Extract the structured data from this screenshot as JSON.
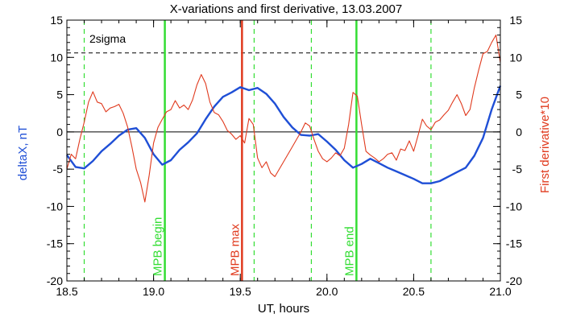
{
  "chart_data": {
    "type": "line",
    "title": "X-variations and first derivative, 13.03.2007",
    "xlabel": "UT, hours",
    "ylabel_left": "deltaX, nT",
    "ylabel_right": "First derivative*10",
    "xlim": [
      18.5,
      21.0
    ],
    "ylim_left": [
      -20,
      15
    ],
    "ylim_right": [
      -20,
      15
    ],
    "x_ticks": [
      18.5,
      19.0,
      19.5,
      20.0,
      20.5,
      21.0
    ],
    "x_tick_labels": [
      "18.5",
      "19.0",
      "19.5",
      "20.0",
      "20.5",
      "21.0"
    ],
    "y_ticks": [
      -20,
      -15,
      -10,
      -5,
      0,
      5,
      10,
      15
    ],
    "y_tick_labels": [
      "-20",
      "-15",
      "-10",
      "-5",
      "0",
      "5",
      "10",
      "15"
    ],
    "colors": {
      "deltaX": "#1f4fd6",
      "derivative": "#e03a1e",
      "mpb_boundary": "#33dd33",
      "mpb_max": "#e03a1e",
      "sigma_marker": "#33dd33",
      "axis": "#000000"
    },
    "zero_line": 0,
    "threshold": {
      "label": "2sigma",
      "value": 10.6,
      "style": "dashed"
    },
    "series": [
      {
        "name": "deltaX, nT",
        "axis": "left",
        "x": [
          18.5,
          18.55,
          18.6,
          18.65,
          18.7,
          18.75,
          18.8,
          18.85,
          18.9,
          18.95,
          19.0,
          19.05,
          19.1,
          19.15,
          19.2,
          19.25,
          19.3,
          19.35,
          19.4,
          19.45,
          19.5,
          19.55,
          19.6,
          19.65,
          19.7,
          19.75,
          19.8,
          19.85,
          19.9,
          19.95,
          20.0,
          20.05,
          20.1,
          20.15,
          20.2,
          20.25,
          20.3,
          20.35,
          20.4,
          20.45,
          20.5,
          20.55,
          20.6,
          20.65,
          20.7,
          20.75,
          20.8,
          20.85,
          20.9,
          20.95,
          21.0
        ],
        "values": [
          -3.1,
          -4.7,
          -4.9,
          -3.9,
          -2.6,
          -1.6,
          -0.5,
          0.3,
          0.5,
          -0.8,
          -3.0,
          -4.4,
          -3.8,
          -2.4,
          -1.4,
          -0.2,
          1.7,
          3.4,
          4.7,
          5.3,
          6.0,
          5.6,
          5.9,
          5.1,
          3.8,
          2.0,
          0.6,
          -0.4,
          -0.5,
          -0.3,
          -1.3,
          -2.4,
          -3.8,
          -4.8,
          -4.3,
          -3.6,
          -4.2,
          -4.8,
          -5.3,
          -5.8,
          -6.3,
          -6.9,
          -6.9,
          -6.6,
          -6.0,
          -5.4,
          -4.8,
          -3.2,
          -0.8,
          3.0,
          6.2
        ]
      },
      {
        "name": "First derivative*10",
        "axis": "right",
        "x": [
          18.5,
          18.525,
          18.55,
          18.575,
          18.6,
          18.625,
          18.65,
          18.675,
          18.7,
          18.725,
          18.75,
          18.775,
          18.8,
          18.825,
          18.85,
          18.875,
          18.9,
          18.925,
          18.95,
          18.975,
          19.0,
          19.025,
          19.05,
          19.075,
          19.1,
          19.125,
          19.15,
          19.175,
          19.2,
          19.225,
          19.25,
          19.275,
          19.3,
          19.325,
          19.35,
          19.375,
          19.4,
          19.425,
          19.45,
          19.475,
          19.5,
          19.525,
          19.55,
          19.575,
          19.6,
          19.625,
          19.65,
          19.675,
          19.7,
          19.725,
          19.75,
          19.775,
          19.8,
          19.825,
          19.85,
          19.875,
          19.9,
          19.925,
          19.95,
          19.975,
          20.0,
          20.025,
          20.05,
          20.075,
          20.1,
          20.125,
          20.15,
          20.175,
          20.2,
          20.225,
          20.25,
          20.275,
          20.3,
          20.325,
          20.35,
          20.375,
          20.4,
          20.425,
          20.45,
          20.475,
          20.5,
          20.525,
          20.55,
          20.575,
          20.6,
          20.625,
          20.65,
          20.675,
          20.7,
          20.725,
          20.75,
          20.775,
          20.8,
          20.825,
          20.85,
          20.875,
          20.9,
          20.925,
          20.95,
          20.975,
          21.0
        ],
        "values": [
          -5.0,
          -3.0,
          -3.6,
          -1.0,
          1.3,
          4.0,
          5.4,
          4.0,
          3.8,
          2.7,
          3.2,
          3.4,
          3.7,
          2.5,
          0.7,
          -2.0,
          -5.0,
          -6.8,
          -9.4,
          -5.8,
          -1.5,
          0.6,
          1.7,
          2.7,
          3.0,
          4.2,
          3.2,
          3.6,
          3.0,
          4.3,
          6.3,
          7.7,
          6.5,
          4.0,
          2.6,
          2.3,
          1.4,
          0.2,
          -0.3,
          -1.0,
          -0.5,
          -1.5,
          1.8,
          1.0,
          -3.5,
          -4.8,
          -4.0,
          -5.5,
          -6.0,
          -5.0,
          -4.0,
          -3.0,
          -2.0,
          -1.0,
          0.0,
          1.2,
          0.8,
          -1.0,
          -2.6,
          -3.6,
          -4.0,
          -3.5,
          -2.8,
          -3.2,
          -2.2,
          1.0,
          5.3,
          4.8,
          1.0,
          -2.6,
          -3.1,
          -3.5,
          -4.0,
          -3.6,
          -3.0,
          -2.8,
          -3.8,
          -2.3,
          -2.5,
          -1.2,
          -2.6,
          -0.5,
          1.7,
          0.8,
          0.3,
          1.3,
          1.6,
          2.3,
          2.9,
          4.0,
          5.0,
          3.8,
          2.2,
          3.0,
          5.9,
          8.3,
          10.5,
          10.8,
          12.0,
          13.0,
          9.3
        ]
      }
    ],
    "vertical_markers": [
      {
        "x": 19.065,
        "label": "MPB begin",
        "style": "solid",
        "color_key": "mpb_boundary"
      },
      {
        "x": 19.51,
        "label": "MPB max",
        "style": "solid",
        "color_key": "mpb_max"
      },
      {
        "x": 20.17,
        "label": "MPB end",
        "style": "solid",
        "color_key": "mpb_boundary"
      },
      {
        "x": 18.6,
        "label": "",
        "style": "dashed",
        "color_key": "sigma_marker"
      },
      {
        "x": 19.58,
        "label": "",
        "style": "dashed",
        "color_key": "sigma_marker"
      },
      {
        "x": 19.91,
        "label": "",
        "style": "dashed",
        "color_key": "sigma_marker"
      },
      {
        "x": 20.6,
        "label": "",
        "style": "dashed",
        "color_key": "sigma_marker"
      }
    ]
  }
}
